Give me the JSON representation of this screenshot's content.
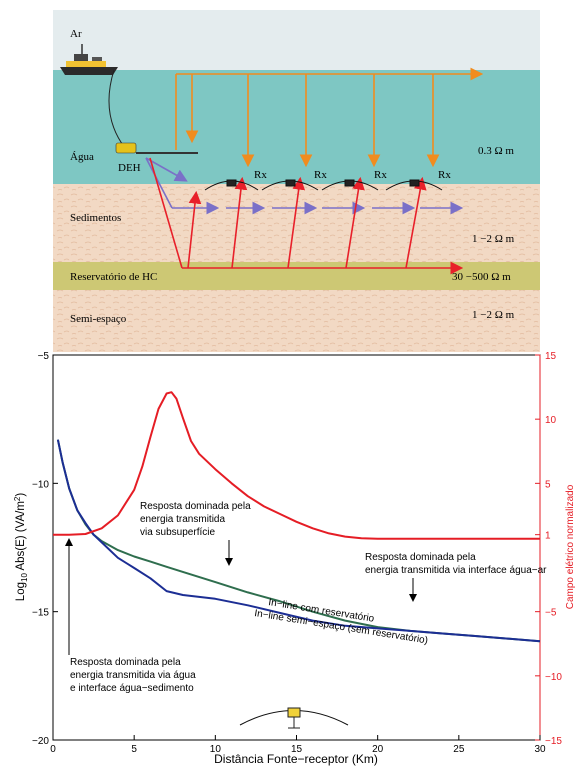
{
  "diagram": {
    "layers": {
      "air": "Ar",
      "water": "Água",
      "sediments": "Sedimentos",
      "reservoir": "Reservatório de HC",
      "halfspace": "Semi-espaço"
    },
    "source_label": "DEH",
    "receiver_label": "Rx",
    "resistivities": {
      "water": "0.3 Ω m",
      "sediments": "1 −2 Ω m",
      "reservoir": "30 −500 Ω m",
      "halfspace": "1 −2 Ω m"
    },
    "colors": {
      "air": "#e4ecee",
      "water": "#7ec7c3",
      "sediment": "#f2d9c4",
      "reservoir": "#cdc874",
      "orange_path": "#f08c1e",
      "red_path": "#e8202a",
      "blue_path": "#7a70c8"
    }
  },
  "chart_data": {
    "type": "line",
    "xlabel": "Distância  Fonte−receptor  (Km)",
    "ylabel_left": "Log",
    "ylabel_left_sub": "10",
    "ylabel_left_rest": " Abs(E)  (VA/m",
    "ylabel_left_sup": "2",
    "ylabel_left_end": ")",
    "ylabel_right": "Campo elétrico normalizado",
    "xlim": [
      0,
      30
    ],
    "ylim_left": [
      -20,
      -5
    ],
    "ylim_right": [
      -15,
      15
    ],
    "xticks": [
      0,
      5,
      10,
      15,
      20,
      25,
      30
    ],
    "yticks_left": [
      -20,
      -15,
      -10,
      -5
    ],
    "yticks_right": [
      -15,
      -10,
      -5,
      1,
      5,
      10,
      15
    ],
    "series": [
      {
        "name": "In−line com reservatório",
        "axis": "left",
        "color": "#2f6e4e",
        "x": [
          0.3,
          0.6,
          1,
          1.5,
          2,
          2.5,
          3,
          4,
          5,
          6,
          7,
          8,
          10,
          12,
          14,
          16,
          18,
          20,
          22,
          24,
          26,
          28,
          30
        ],
        "y": [
          -8.3,
          -9.2,
          -10.2,
          -11.05,
          -11.6,
          -12.0,
          -12.25,
          -12.6,
          -12.85,
          -13.05,
          -13.25,
          -13.45,
          -13.85,
          -14.25,
          -14.6,
          -15.0,
          -15.35,
          -15.6,
          -15.75,
          -15.85,
          -15.95,
          -16.05,
          -16.15
        ]
      },
      {
        "name": "In−line semi−espaço (sem reservatório)",
        "axis": "left",
        "color": "#1c2e94",
        "x": [
          0.3,
          0.6,
          1,
          1.5,
          2,
          2.5,
          3,
          4,
          5,
          6,
          7,
          8,
          10,
          12,
          14,
          16,
          18,
          20,
          22,
          24,
          26,
          28,
          30
        ],
        "y": [
          -8.3,
          -9.2,
          -10.2,
          -11.05,
          -11.55,
          -12.0,
          -12.3,
          -12.9,
          -13.3,
          -13.7,
          -14.2,
          -14.35,
          -14.5,
          -14.75,
          -15.05,
          -15.35,
          -15.55,
          -15.65,
          -15.75,
          -15.85,
          -15.95,
          -16.05,
          -16.15
        ]
      },
      {
        "name": "Campo elétrico normalizado",
        "axis": "right",
        "color": "#e51d25",
        "x": [
          0,
          1,
          2,
          3,
          4,
          5,
          5.5,
          6,
          6.5,
          7,
          7.3,
          7.6,
          8,
          8.5,
          9,
          10,
          11,
          12,
          13,
          14,
          15,
          16,
          17,
          18,
          19,
          20,
          21,
          22,
          24,
          26,
          28,
          30
        ],
        "y": [
          1,
          1,
          1.05,
          1.5,
          2.5,
          4.5,
          6.3,
          8.6,
          10.8,
          12.0,
          12.1,
          11.6,
          10.1,
          8.3,
          7.3,
          6.1,
          5.0,
          4.0,
          3.2,
          2.6,
          2.0,
          1.5,
          1.1,
          0.85,
          0.72,
          0.68,
          0.68,
          0.68,
          0.68,
          0.68,
          0.68,
          0.68
        ]
      }
    ],
    "annotations": {
      "subsurface": [
        "Resposta dominada pela",
        "energia transmitida",
        "via subsuperfície"
      ],
      "airwater": [
        "Resposta dominada pela",
        "energia transmitida via interface água−ar"
      ],
      "watersed": [
        "Resposta dominada pela",
        "energia transmitida via água",
        "e interface água−sedimento"
      ]
    }
  }
}
